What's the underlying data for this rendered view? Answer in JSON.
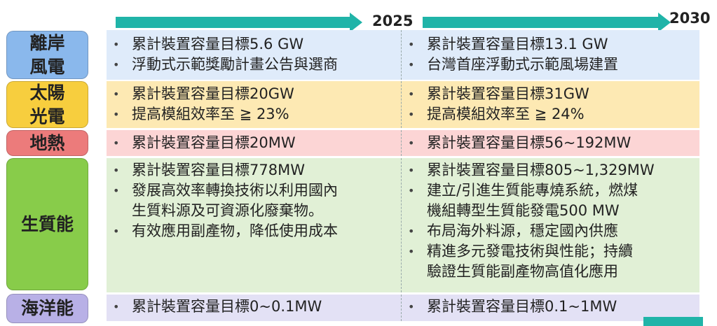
{
  "header": {
    "year_start": "2025",
    "year_end": "2030"
  },
  "colors": {
    "arrow": "#20b4a8",
    "rows": [
      "#dfebfa",
      "#fde9b3",
      "#fcd5d5",
      "#e1f0d6",
      "#e3e1f5"
    ],
    "labels": [
      "#8ab8ec",
      "#f7ce3e",
      "#ec7b7b",
      "#88cc4a",
      "#b8b0e6"
    ]
  },
  "rows": [
    {
      "label": "離岸\n風電",
      "c2025": [
        "累計裝置容量目標5.6 GW",
        "浮動式示範獎勵計畫公告與選商"
      ],
      "c2030": [
        "累計裝置容量目標13.1 GW",
        "台灣首座浮動式示範風場建置"
      ]
    },
    {
      "label": "太陽\n光電",
      "c2025": [
        "累計裝置容量目標20GW",
        "提高模組效率至 ≧ 23%"
      ],
      "c2030": [
        "累計裝置容量目標31GW",
        "提高模組效率至 ≧ 24%"
      ]
    },
    {
      "label": "地熱",
      "c2025": [
        "累計裝置容量目標20MW"
      ],
      "c2030": [
        "累計裝置容量目標56~192MW"
      ]
    },
    {
      "label": "生質能",
      "c2025": [
        "累計裝置容量目標778MW",
        "發展高效率轉換技術以利用國內\n生質料源及可資源化廢棄物。",
        "有效應用副產物，降低使用成本"
      ],
      "c2030": [
        "累計裝置容量目標805~1,329MW",
        "建立/引進生質能專燒系統，燃煤\n機組轉型生質能發電500 MW",
        "布局海外料源，穩定國內供應",
        "精進多元發電技術與性能；持續\n驗證生質能副產物高值化應用"
      ]
    },
    {
      "label": "海洋能",
      "c2025": [
        "累計裝置容量目標0~0.1MW"
      ],
      "c2030": [
        "累計裝置容量目標0.1~1MW"
      ]
    }
  ]
}
